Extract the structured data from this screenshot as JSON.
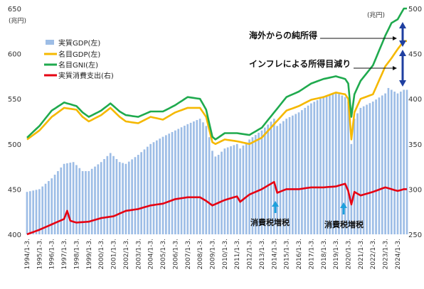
{
  "chart_data": {
    "type": "bar+line",
    "left_axis": {
      "unit": "(兆円)",
      "min": 400,
      "max": 650,
      "ticks": [
        400,
        450,
        500,
        550,
        600,
        650
      ]
    },
    "right_axis": {
      "unit": "(兆円)",
      "min": 250,
      "max": 500,
      "ticks": [
        250,
        300,
        350,
        400,
        450,
        500
      ]
    },
    "x_ticks": [
      "1994/1-3.",
      "1995/1-3.",
      "1996/1-3.",
      "1997/1-3.",
      "1998/1-3.",
      "1999/1-3.",
      "2000/1-3.",
      "2001/1-3.",
      "2002/1-3.",
      "2003/1-3.",
      "2004/1-3.",
      "2005/1-3.",
      "2006/1-3.",
      "2007/1-3.",
      "2008/1-3.",
      "2009/1-3.",
      "2010/1-3.",
      "2011/1-3.",
      "2012/1-3.",
      "2013/1-3.",
      "2014/1-3.",
      "2015/1-3.",
      "2016/1-3.",
      "2017/1-3.",
      "2018/1-3.",
      "2019/1-3.",
      "2020/1-3.",
      "2021/1-3.",
      "2022/1-3.",
      "2023/1-3.",
      "2024/1-3."
    ],
    "series": [
      {
        "name": "実質GDP(左)",
        "color": "#9dbde6",
        "axis": "left",
        "kind": "bar",
        "anchors": [
          [
            1994.0,
            447
          ],
          [
            1995.0,
            450
          ],
          [
            1996.0,
            462
          ],
          [
            1997.0,
            478
          ],
          [
            1997.75,
            480
          ],
          [
            1998.5,
            470
          ],
          [
            1999.0,
            470
          ],
          [
            2000.0,
            480
          ],
          [
            2000.75,
            490
          ],
          [
            2001.5,
            480
          ],
          [
            2002.0,
            478
          ],
          [
            2003.0,
            488
          ],
          [
            2004.0,
            500
          ],
          [
            2005.0,
            508
          ],
          [
            2006.0,
            515
          ],
          [
            2007.0,
            522
          ],
          [
            2008.0,
            528
          ],
          [
            2008.5,
            520
          ],
          [
            2008.9,
            500
          ],
          [
            2009.1,
            485
          ],
          [
            2009.5,
            488
          ],
          [
            2010.0,
            495
          ],
          [
            2011.0,
            500
          ],
          [
            2011.25,
            495
          ],
          [
            2012.0,
            505
          ],
          [
            2013.0,
            515
          ],
          [
            2014.0,
            528
          ],
          [
            2014.25,
            520
          ],
          [
            2015.0,
            528
          ],
          [
            2016.0,
            535
          ],
          [
            2017.0,
            545
          ],
          [
            2018.0,
            552
          ],
          [
            2019.0,
            557
          ],
          [
            2019.75,
            552
          ],
          [
            2020.0,
            547
          ],
          [
            2020.25,
            500
          ],
          [
            2020.5,
            528
          ],
          [
            2021.0,
            540
          ],
          [
            2022.0,
            547
          ],
          [
            2023.0,
            556
          ],
          [
            2023.25,
            562
          ],
          [
            2024.0,
            556
          ],
          [
            2024.5,
            560
          ]
        ]
      },
      {
        "name": "名目GDP(左)",
        "color": "#f5b800",
        "axis": "left",
        "kind": "line",
        "anchors": [
          [
            1994.0,
            505
          ],
          [
            1995.0,
            515
          ],
          [
            1996.0,
            530
          ],
          [
            1997.0,
            540
          ],
          [
            1998.0,
            538
          ],
          [
            1998.5,
            530
          ],
          [
            1999.0,
            525
          ],
          [
            2000.0,
            532
          ],
          [
            2000.75,
            540
          ],
          [
            2001.5,
            530
          ],
          [
            2002.0,
            525
          ],
          [
            2003.0,
            523
          ],
          [
            2004.0,
            530
          ],
          [
            2005.0,
            527
          ],
          [
            2006.0,
            535
          ],
          [
            2007.0,
            540
          ],
          [
            2008.0,
            540
          ],
          [
            2008.5,
            530
          ],
          [
            2009.0,
            502
          ],
          [
            2009.25,
            500
          ],
          [
            2010.0,
            505
          ],
          [
            2011.0,
            503
          ],
          [
            2012.0,
            500
          ],
          [
            2013.0,
            507
          ],
          [
            2014.0,
            522
          ],
          [
            2015.0,
            537
          ],
          [
            2016.0,
            542
          ],
          [
            2017.0,
            549
          ],
          [
            2018.0,
            552
          ],
          [
            2019.0,
            557
          ],
          [
            2019.75,
            555
          ],
          [
            2020.0,
            550
          ],
          [
            2020.25,
            505
          ],
          [
            2020.5,
            535
          ],
          [
            2021.0,
            550
          ],
          [
            2022.0,
            555
          ],
          [
            2023.0,
            586
          ],
          [
            2023.5,
            595
          ],
          [
            2024.0,
            605
          ],
          [
            2024.5,
            614
          ]
        ]
      },
      {
        "name": "名目GNI(左)",
        "color": "#1faa4e",
        "axis": "left",
        "kind": "line",
        "anchors": [
          [
            1994.0,
            507
          ],
          [
            1995.0,
            520
          ],
          [
            1996.0,
            537
          ],
          [
            1997.0,
            546
          ],
          [
            1998.0,
            542
          ],
          [
            1998.5,
            535
          ],
          [
            1999.0,
            530
          ],
          [
            2000.0,
            537
          ],
          [
            2000.75,
            545
          ],
          [
            2001.5,
            536
          ],
          [
            2002.0,
            532
          ],
          [
            2003.0,
            530
          ],
          [
            2004.0,
            536
          ],
          [
            2005.0,
            536
          ],
          [
            2006.0,
            543
          ],
          [
            2007.0,
            552
          ],
          [
            2008.0,
            550
          ],
          [
            2008.5,
            538
          ],
          [
            2009.0,
            508
          ],
          [
            2009.25,
            505
          ],
          [
            2010.0,
            512
          ],
          [
            2011.0,
            512
          ],
          [
            2012.0,
            510
          ],
          [
            2013.0,
            518
          ],
          [
            2014.0,
            535
          ],
          [
            2015.0,
            552
          ],
          [
            2016.0,
            558
          ],
          [
            2017.0,
            567
          ],
          [
            2018.0,
            572
          ],
          [
            2019.0,
            575
          ],
          [
            2019.75,
            572
          ],
          [
            2020.0,
            567
          ],
          [
            2020.25,
            530
          ],
          [
            2020.5,
            555
          ],
          [
            2021.0,
            570
          ],
          [
            2022.0,
            587
          ],
          [
            2023.0,
            620
          ],
          [
            2023.5,
            634
          ],
          [
            2024.0,
            638
          ],
          [
            2024.5,
            650
          ]
        ]
      },
      {
        "name": "実質消費支出(右)",
        "color": "#e60012",
        "axis": "right",
        "kind": "line",
        "anchors": [
          [
            1994.0,
            250
          ],
          [
            1995.0,
            255
          ],
          [
            1996.0,
            261
          ],
          [
            1997.0,
            267
          ],
          [
            1997.25,
            276
          ],
          [
            1997.5,
            265
          ],
          [
            1998.0,
            263
          ],
          [
            1999.0,
            264
          ],
          [
            2000.0,
            268
          ],
          [
            2001.0,
            270
          ],
          [
            2002.0,
            276
          ],
          [
            2003.0,
            278
          ],
          [
            2004.0,
            282
          ],
          [
            2005.0,
            284
          ],
          [
            2006.0,
            289
          ],
          [
            2007.0,
            291
          ],
          [
            2008.0,
            291
          ],
          [
            2008.5,
            287
          ],
          [
            2009.0,
            282
          ],
          [
            2010.0,
            288
          ],
          [
            2011.0,
            292
          ],
          [
            2011.25,
            286
          ],
          [
            2012.0,
            294
          ],
          [
            2013.0,
            300
          ],
          [
            2014.0,
            308
          ],
          [
            2014.25,
            296
          ],
          [
            2015.0,
            300
          ],
          [
            2016.0,
            300
          ],
          [
            2017.0,
            302
          ],
          [
            2018.0,
            302
          ],
          [
            2019.0,
            303
          ],
          [
            2019.75,
            306
          ],
          [
            2020.0,
            298
          ],
          [
            2020.25,
            283
          ],
          [
            2020.5,
            297
          ],
          [
            2021.0,
            293
          ],
          [
            2022.0,
            297
          ],
          [
            2023.0,
            302
          ],
          [
            2023.5,
            300
          ],
          [
            2024.0,
            298
          ],
          [
            2024.5,
            300
          ]
        ]
      }
    ],
    "annotations": {
      "gni_gap": "海外からの純所得",
      "gdp_gap": "インフレによる所得目減り",
      "tax1": "消費税増税",
      "tax2": "消費税増税"
    }
  }
}
